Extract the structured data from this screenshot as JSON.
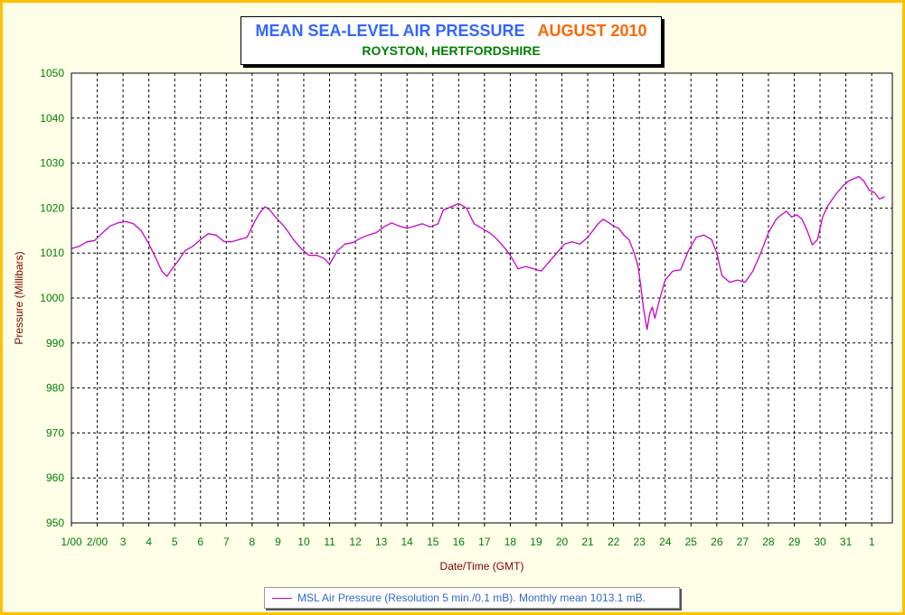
{
  "chart_data": {
    "type": "line",
    "title": "MEAN SEA-LEVEL AIR PRESSURE",
    "title_date": "AUGUST 2010",
    "subtitle": "ROYSTON, HERTFORDSHIRE",
    "xlabel": "Date/Time (GMT)",
    "ylabel": "Pressure (Millibars)",
    "ylim": [
      950,
      1050
    ],
    "xlim": [
      1,
      32.8
    ],
    "y_ticks": [
      950,
      960,
      970,
      980,
      990,
      1000,
      1010,
      1020,
      1030,
      1040,
      1050
    ],
    "x_ticks": [
      {
        "value": 1,
        "label": "1/00"
      },
      {
        "value": 2,
        "label": "2/00"
      },
      {
        "value": 3,
        "label": "3"
      },
      {
        "value": 4,
        "label": "4"
      },
      {
        "value": 5,
        "label": "5"
      },
      {
        "value": 6,
        "label": "6"
      },
      {
        "value": 7,
        "label": "7"
      },
      {
        "value": 8,
        "label": "8"
      },
      {
        "value": 9,
        "label": "9"
      },
      {
        "value": 10,
        "label": "10"
      },
      {
        "value": 11,
        "label": "11"
      },
      {
        "value": 12,
        "label": "12"
      },
      {
        "value": 13,
        "label": "13"
      },
      {
        "value": 14,
        "label": "14"
      },
      {
        "value": 15,
        "label": "15"
      },
      {
        "value": 16,
        "label": "16"
      },
      {
        "value": 17,
        "label": "17"
      },
      {
        "value": 18,
        "label": "18"
      },
      {
        "value": 19,
        "label": "19"
      },
      {
        "value": 20,
        "label": "20"
      },
      {
        "value": 21,
        "label": "21"
      },
      {
        "value": 22,
        "label": "22"
      },
      {
        "value": 23,
        "label": "23"
      },
      {
        "value": 24,
        "label": "24"
      },
      {
        "value": 25,
        "label": "25"
      },
      {
        "value": 26,
        "label": "26"
      },
      {
        "value": 27,
        "label": "27"
      },
      {
        "value": 28,
        "label": "28"
      },
      {
        "value": 29,
        "label": "29"
      },
      {
        "value": 30,
        "label": "30"
      },
      {
        "value": 31,
        "label": "31"
      },
      {
        "value": 32,
        "label": "1"
      }
    ],
    "grid": true,
    "legend_position": "bottom",
    "series": [
      {
        "name": "MSL Air Pressure (Resolution 5 min./0.1 mB). Monthly mean 1013.1 mB.",
        "color": "#cc00cc",
        "x": [
          1.0,
          1.3,
          1.6,
          1.9,
          2.2,
          2.5,
          2.8,
          3.1,
          3.4,
          3.7,
          4.0,
          4.3,
          4.5,
          4.7,
          4.9,
          5.1,
          5.4,
          5.7,
          6.0,
          6.3,
          6.6,
          6.9,
          7.2,
          7.5,
          7.8,
          8.1,
          8.3,
          8.5,
          8.7,
          8.9,
          9.1,
          9.3,
          9.6,
          9.9,
          10.2,
          10.5,
          10.8,
          11.0,
          11.3,
          11.6,
          11.9,
          12.2,
          12.5,
          12.8,
          13.1,
          13.4,
          13.7,
          14.0,
          14.3,
          14.6,
          14.9,
          15.2,
          15.4,
          15.6,
          15.8,
          16.0,
          16.3,
          16.6,
          16.9,
          17.2,
          17.5,
          17.8,
          18.0,
          18.3,
          18.6,
          18.9,
          19.2,
          19.5,
          19.8,
          20.1,
          20.4,
          20.7,
          21.0,
          21.2,
          21.4,
          21.6,
          21.8,
          22.0,
          22.2,
          22.4,
          22.6,
          22.8,
          22.95,
          23.05,
          23.15,
          23.3,
          23.4,
          23.5,
          23.6,
          23.8,
          24.0,
          24.3,
          24.6,
          24.9,
          25.2,
          25.5,
          25.8,
          26.0,
          26.2,
          26.5,
          26.8,
          27.1,
          27.4,
          27.7,
          28.0,
          28.3,
          28.5,
          28.7,
          28.9,
          29.1,
          29.3,
          29.5,
          29.7,
          29.9,
          30.1,
          30.3,
          30.6,
          30.9,
          31.1,
          31.3,
          31.5,
          31.7,
          31.9,
          32.1,
          32.3,
          32.5
        ],
        "y": [
          1011,
          1011.5,
          1012.5,
          1012.8,
          1014.5,
          1016,
          1016.7,
          1017,
          1016.5,
          1015,
          1012,
          1008.5,
          1006,
          1004.8,
          1006.5,
          1008,
          1010.5,
          1011.5,
          1013,
          1014.3,
          1014,
          1012.6,
          1012.5,
          1013,
          1013.5,
          1017,
          1019,
          1020.3,
          1019.5,
          1018,
          1016.8,
          1015.5,
          1013,
          1011,
          1009.5,
          1009.5,
          1008.8,
          1007.5,
          1010.5,
          1012,
          1012.3,
          1013.3,
          1014,
          1014.5,
          1015.8,
          1016.7,
          1016,
          1015.5,
          1016,
          1016.5,
          1015.8,
          1016.5,
          1019.5,
          1020,
          1020.5,
          1021,
          1020,
          1016.5,
          1015.5,
          1014.5,
          1013,
          1011,
          1009.5,
          1006.5,
          1007,
          1006.5,
          1006,
          1008,
          1010,
          1012,
          1012.5,
          1012,
          1013.5,
          1015,
          1016.5,
          1017.5,
          1016.8,
          1016,
          1015.5,
          1014,
          1013,
          1010,
          1007,
          1003,
          998,
          993,
          996.5,
          998,
          995.5,
          1000,
          1004,
          1006,
          1006.3,
          1010.5,
          1013.5,
          1014,
          1013,
          1010,
          1005,
          1003.5,
          1004,
          1003.5,
          1006,
          1010,
          1014.5,
          1017.5,
          1018.5,
          1019.3,
          1018,
          1018.5,
          1017.5,
          1015,
          1011.8,
          1013,
          1018,
          1020.5,
          1023,
          1025,
          1026,
          1026.5,
          1027,
          1026,
          1024,
          1023.5,
          1022,
          1022.5
        ]
      }
    ]
  }
}
